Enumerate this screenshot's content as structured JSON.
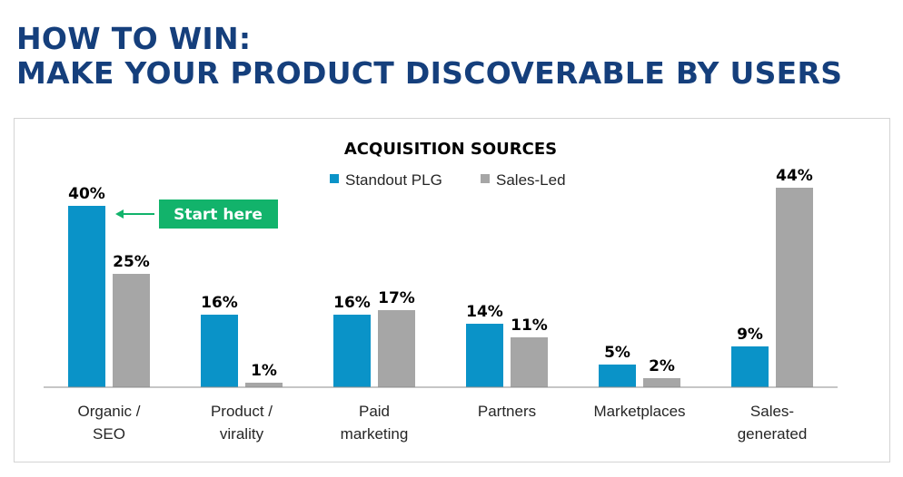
{
  "headline": {
    "line1": "HOW TO WIN:",
    "line2": "MAKE YOUR PRODUCT DISCOVERABLE BY USERS"
  },
  "colors": {
    "headline": "#153f7c",
    "standout": "#0a93c8",
    "sales_led": "#a6a6a6",
    "callout": "#12b36b"
  },
  "callout": {
    "label": "Start here",
    "icon": "arrow-left-icon"
  },
  "chart_data": {
    "type": "bar",
    "title": "ACQUISITION SOURCES",
    "legend_position": "top-center",
    "grid": false,
    "ylim": [
      0,
      48
    ],
    "categories": [
      [
        "Organic /",
        "SEO"
      ],
      [
        "Product /",
        "virality"
      ],
      [
        "Paid",
        "marketing"
      ],
      [
        "Partners"
      ],
      [
        "Marketplaces"
      ],
      [
        "Sales-",
        "generated"
      ]
    ],
    "series": [
      {
        "name": "Standout PLG",
        "values": [
          40,
          16,
          16,
          14,
          5,
          9
        ],
        "labels": [
          "40%",
          "16%",
          "16%",
          "14%",
          "5%",
          "9%"
        ]
      },
      {
        "name": "Sales-Led",
        "values": [
          25,
          1,
          17,
          11,
          2,
          44
        ],
        "labels": [
          "25%",
          "1%",
          "17%",
          "11%",
          "2%",
          "44%"
        ]
      }
    ]
  }
}
